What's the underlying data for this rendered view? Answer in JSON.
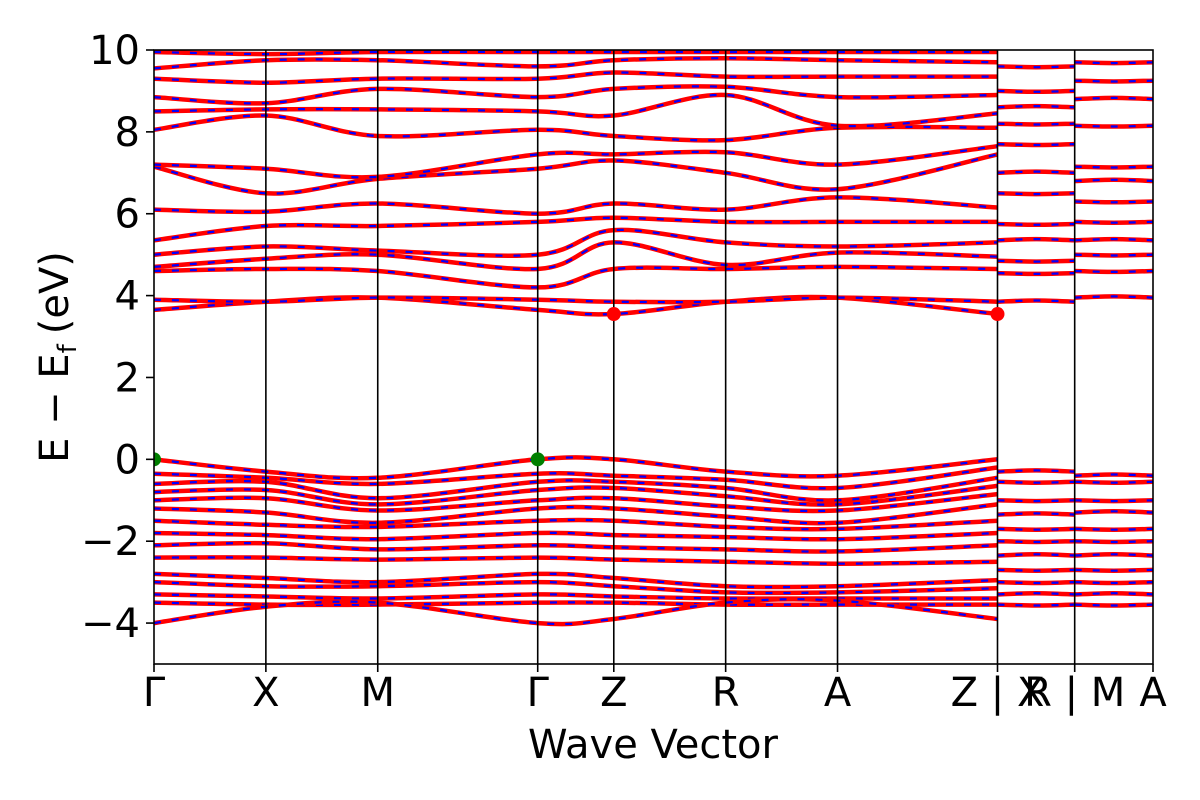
{
  "chart_data": {
    "type": "line",
    "title": "",
    "xlabel": "Wave Vector",
    "ylabel": "E − E",
    "ylabel_subscript": "f",
    "ylabel_unit": "(eV)",
    "ylim": [
      -5,
      10
    ],
    "xlim": [
      0,
      8.93
    ],
    "grid": false,
    "legend": "none",
    "y_ticks": [
      -4,
      -2,
      0,
      2,
      4,
      6,
      8,
      10
    ],
    "y_tick_labels": [
      "−4",
      "−2",
      "0",
      "2",
      "4",
      "6",
      "8",
      "10"
    ],
    "kpath_ticks": [
      {
        "x": 0.0,
        "label": "Γ"
      },
      {
        "x": 1.0,
        "label": "X"
      },
      {
        "x": 2.0,
        "label": "M"
      },
      {
        "x": 3.43,
        "label": "Γ"
      },
      {
        "x": 4.11,
        "label": "Z"
      },
      {
        "x": 5.11,
        "label": "R"
      },
      {
        "x": 6.11,
        "label": "A"
      },
      {
        "x": 7.54,
        "label": "Z | X"
      },
      {
        "x": 8.23,
        "label": "R | M"
      },
      {
        "x": 8.93,
        "label": "A"
      }
    ],
    "series": [
      {
        "style": "spin-up solid",
        "color": "#ff0000"
      },
      {
        "style": "spin-down dashed",
        "color": "#0000ff"
      }
    ],
    "markers": [
      {
        "x": 0.0,
        "y": 0.0,
        "color": "#007f00"
      },
      {
        "x": 3.43,
        "y": 0.0,
        "color": "#007f00"
      },
      {
        "x": 4.11,
        "y": 3.55,
        "color": "#ff0000"
      },
      {
        "x": 7.54,
        "y": 3.55,
        "color": "#ff0000"
      }
    ],
    "bands_at_kpoints": {
      "note_kpoints": [
        0,
        1,
        2,
        3.43,
        4.11,
        5.11,
        6.11,
        7.54
      ],
      "valence": [
        [
          0.0,
          -0.3,
          -0.45,
          0.0,
          0.0,
          -0.3,
          -0.4,
          0.0
        ],
        [
          -0.35,
          -0.45,
          -0.6,
          -0.35,
          -0.4,
          -0.5,
          -0.7,
          -0.2
        ],
        [
          -0.6,
          -0.55,
          -0.95,
          -0.55,
          -0.55,
          -0.7,
          -1.0,
          -0.45
        ],
        [
          -0.8,
          -0.75,
          -1.1,
          -0.75,
          -0.7,
          -0.9,
          -1.1,
          -0.65
        ],
        [
          -1.0,
          -0.95,
          -1.25,
          -1.0,
          -0.95,
          -1.15,
          -1.25,
          -0.85
        ],
        [
          -1.2,
          -1.3,
          -1.55,
          -1.2,
          -1.2,
          -1.4,
          -1.55,
          -1.1
        ],
        [
          -1.5,
          -1.6,
          -1.65,
          -1.5,
          -1.5,
          -1.65,
          -1.7,
          -1.5
        ],
        [
          -1.8,
          -1.85,
          -1.95,
          -1.8,
          -1.85,
          -1.9,
          -1.95,
          -1.8
        ],
        [
          -2.1,
          -2.05,
          -2.2,
          -2.1,
          -2.15,
          -2.2,
          -2.25,
          -2.1
        ],
        [
          -2.4,
          -2.4,
          -2.45,
          -2.4,
          -2.45,
          -2.5,
          -2.55,
          -2.5
        ],
        [
          -2.8,
          -2.9,
          -3.0,
          -2.8,
          -2.9,
          -3.1,
          -3.1,
          -2.95
        ],
        [
          -3.0,
          -3.1,
          -3.1,
          -3.0,
          -3.1,
          -3.25,
          -3.25,
          -3.15
        ],
        [
          -3.3,
          -3.35,
          -3.4,
          -3.3,
          -3.35,
          -3.4,
          -3.4,
          -3.4
        ],
        [
          -3.5,
          -3.55,
          -3.55,
          -3.5,
          -3.5,
          -3.55,
          -3.55,
          -3.55
        ],
        [
          -4.0,
          -3.6,
          -3.5,
          -4.0,
          -3.9,
          -3.5,
          -3.45,
          -3.9
        ]
      ],
      "conduction": [
        [
          3.65,
          3.85,
          3.95,
          3.65,
          3.55,
          3.85,
          3.95,
          3.55
        ],
        [
          3.9,
          3.85,
          3.95,
          3.9,
          3.85,
          3.85,
          3.95,
          3.85
        ],
        [
          4.6,
          4.65,
          4.6,
          4.2,
          4.65,
          4.65,
          4.7,
          4.65
        ],
        [
          4.7,
          4.9,
          5.0,
          4.65,
          5.3,
          4.75,
          5.05,
          4.95
        ],
        [
          5.0,
          5.2,
          5.1,
          5.0,
          5.6,
          5.3,
          5.2,
          5.3
        ],
        [
          5.35,
          5.7,
          5.7,
          5.8,
          5.9,
          5.8,
          5.8,
          5.8
        ],
        [
          6.1,
          6.05,
          6.25,
          6.0,
          6.25,
          6.1,
          6.4,
          6.15
        ],
        [
          7.15,
          6.5,
          6.85,
          7.1,
          7.3,
          7.0,
          6.6,
          7.45
        ],
        [
          7.2,
          7.1,
          6.9,
          7.45,
          7.45,
          7.5,
          7.2,
          7.65
        ],
        [
          8.05,
          8.4,
          7.9,
          8.05,
          7.9,
          7.8,
          8.1,
          8.1
        ],
        [
          8.5,
          8.55,
          8.55,
          8.5,
          8.4,
          8.9,
          8.15,
          8.45
        ],
        [
          8.85,
          8.7,
          9.05,
          8.85,
          9.05,
          9.1,
          8.85,
          8.9
        ],
        [
          9.3,
          9.2,
          9.3,
          9.3,
          9.45,
          9.35,
          9.35,
          9.35
        ],
        [
          9.55,
          9.75,
          9.75,
          9.6,
          9.75,
          9.8,
          9.75,
          9.7
        ],
        [
          9.95,
          9.9,
          9.95,
          9.95,
          9.95,
          9.95,
          9.95,
          9.95
        ]
      ],
      "segment_ZX_RM_valence": [
        -0.3,
        -0.55,
        -1.0,
        -1.35,
        -1.7,
        -2.0,
        -2.35,
        -2.7,
        -3.0,
        -3.3,
        -3.55
      ],
      "segment_RM_A_valence": [
        -0.4,
        -0.55,
        -1.0,
        -1.3,
        -1.7,
        -2.0,
        -2.35,
        -2.7,
        -3.0,
        -3.3,
        -3.55
      ],
      "segment_ZX_RM_conduction": [
        3.85,
        4.55,
        4.85,
        5.35,
        5.75,
        6.5,
        7.0,
        7.7,
        8.2,
        8.6,
        9.0,
        9.6
      ],
      "segment_RM_A_conduction": [
        3.95,
        4.6,
        5.0,
        5.35,
        5.8,
        6.3,
        6.8,
        7.15,
        8.15,
        8.8,
        9.25,
        9.7
      ]
    }
  }
}
